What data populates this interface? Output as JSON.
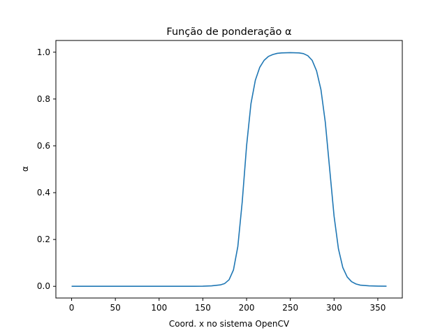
{
  "chart_data": {
    "type": "line",
    "title": "Função de ponderação α",
    "xlabel": "Coord. x no sistema OpenCV",
    "ylabel": "α",
    "xlim": [
      -18,
      378
    ],
    "ylim": [
      -0.05,
      1.05
    ],
    "xticks": [
      0,
      50,
      100,
      150,
      200,
      250,
      300,
      350
    ],
    "xtick_labels": [
      "0",
      "50",
      "100",
      "150",
      "200",
      "250",
      "300",
      "350"
    ],
    "yticks": [
      0.0,
      0.2,
      0.4,
      0.6,
      0.8,
      1.0
    ],
    "ytick_labels": [
      "0.0",
      "0.2",
      "0.4",
      "0.6",
      "0.8",
      "1.0"
    ],
    "grid": false,
    "legend": "none",
    "series": [
      {
        "color": "#1f77b4",
        "x": [
          0,
          20,
          40,
          60,
          80,
          100,
          120,
          140,
          150,
          160,
          170,
          175,
          180,
          185,
          190,
          195,
          200,
          205,
          210,
          215,
          220,
          225,
          230,
          235,
          240,
          250,
          260,
          265,
          270,
          275,
          280,
          285,
          290,
          295,
          300,
          305,
          310,
          315,
          320,
          325,
          330,
          340,
          350,
          360
        ],
        "y": [
          0,
          0,
          0,
          0,
          0,
          0,
          0,
          0,
          0.0005,
          0.002,
          0.006,
          0.012,
          0.028,
          0.07,
          0.17,
          0.36,
          0.6,
          0.78,
          0.88,
          0.935,
          0.965,
          0.982,
          0.99,
          0.995,
          0.997,
          0.998,
          0.997,
          0.994,
          0.985,
          0.965,
          0.92,
          0.84,
          0.7,
          0.5,
          0.3,
          0.16,
          0.08,
          0.04,
          0.02,
          0.01,
          0.005,
          0.002,
          0.001,
          0.0005
        ]
      }
    ]
  }
}
